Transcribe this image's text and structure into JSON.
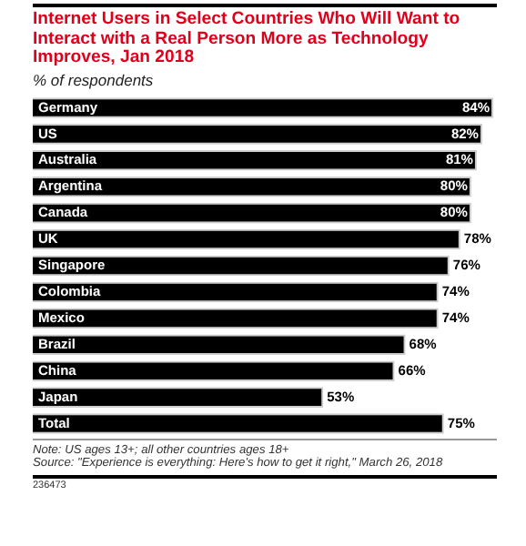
{
  "chart_data": {
    "type": "bar",
    "orientation": "horizontal",
    "title": "Internet Users in Select Countries Who Will Want to Interact with a Real Person More as Technology Improves, Jan 2018",
    "subtitle": "% of respondents",
    "categories": [
      "Germany",
      "US",
      "Australia",
      "Argentina",
      "Canada",
      "UK",
      "Singapore",
      "Colombia",
      "Mexico",
      "Brazil",
      "China",
      "Japan",
      "Total"
    ],
    "values": [
      84,
      82,
      81,
      80,
      80,
      78,
      76,
      74,
      74,
      68,
      66,
      53,
      75
    ],
    "value_labels": [
      "84%",
      "82%",
      "81%",
      "80%",
      "80%",
      "78%",
      "76%",
      "74%",
      "74%",
      "68%",
      "66%",
      "53%",
      "75%"
    ],
    "color": "#000000",
    "legend": false,
    "annotations": [
      "Note: US ages 13+; all other countries ages 18+",
      "Source: \"Experience is everything: Here's how to get it right,\" March 26, 2018",
      "236473"
    ]
  }
}
